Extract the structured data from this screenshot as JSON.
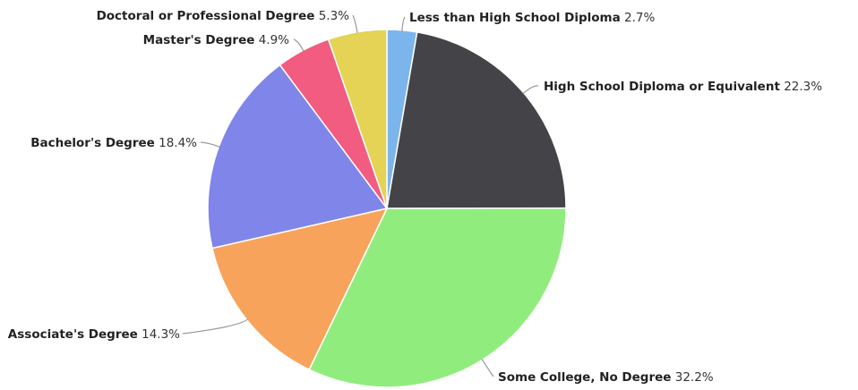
{
  "chart_data": {
    "type": "pie",
    "unit": "%",
    "slices": [
      {
        "label": "Less than High School Diploma",
        "value": 2.7,
        "display": "2.7%",
        "color": "#7cb5ec"
      },
      {
        "label": "High School Diploma or Equivalent",
        "value": 22.3,
        "display": "22.3%",
        "color": "#434348"
      },
      {
        "label": "Some College, No Degree",
        "value": 32.2,
        "display": "32.2%",
        "color": "#90ed7d"
      },
      {
        "label": "Associate's Degree",
        "value": 14.3,
        "display": "14.3%",
        "color": "#f7a35c"
      },
      {
        "label": "Bachelor's Degree",
        "value": 18.4,
        "display": "18.4%",
        "color": "#8085e9"
      },
      {
        "label": "Master's Degree",
        "value": 4.9,
        "display": "4.9%",
        "color": "#f15c80"
      },
      {
        "label": "Doctoral or Professional Degree",
        "value": 5.3,
        "display": "5.3%",
        "color": "#e4d354"
      }
    ],
    "start_angle": "top",
    "direction": "clockwise",
    "legend": "none",
    "data_labels": "outside with leader lines"
  }
}
